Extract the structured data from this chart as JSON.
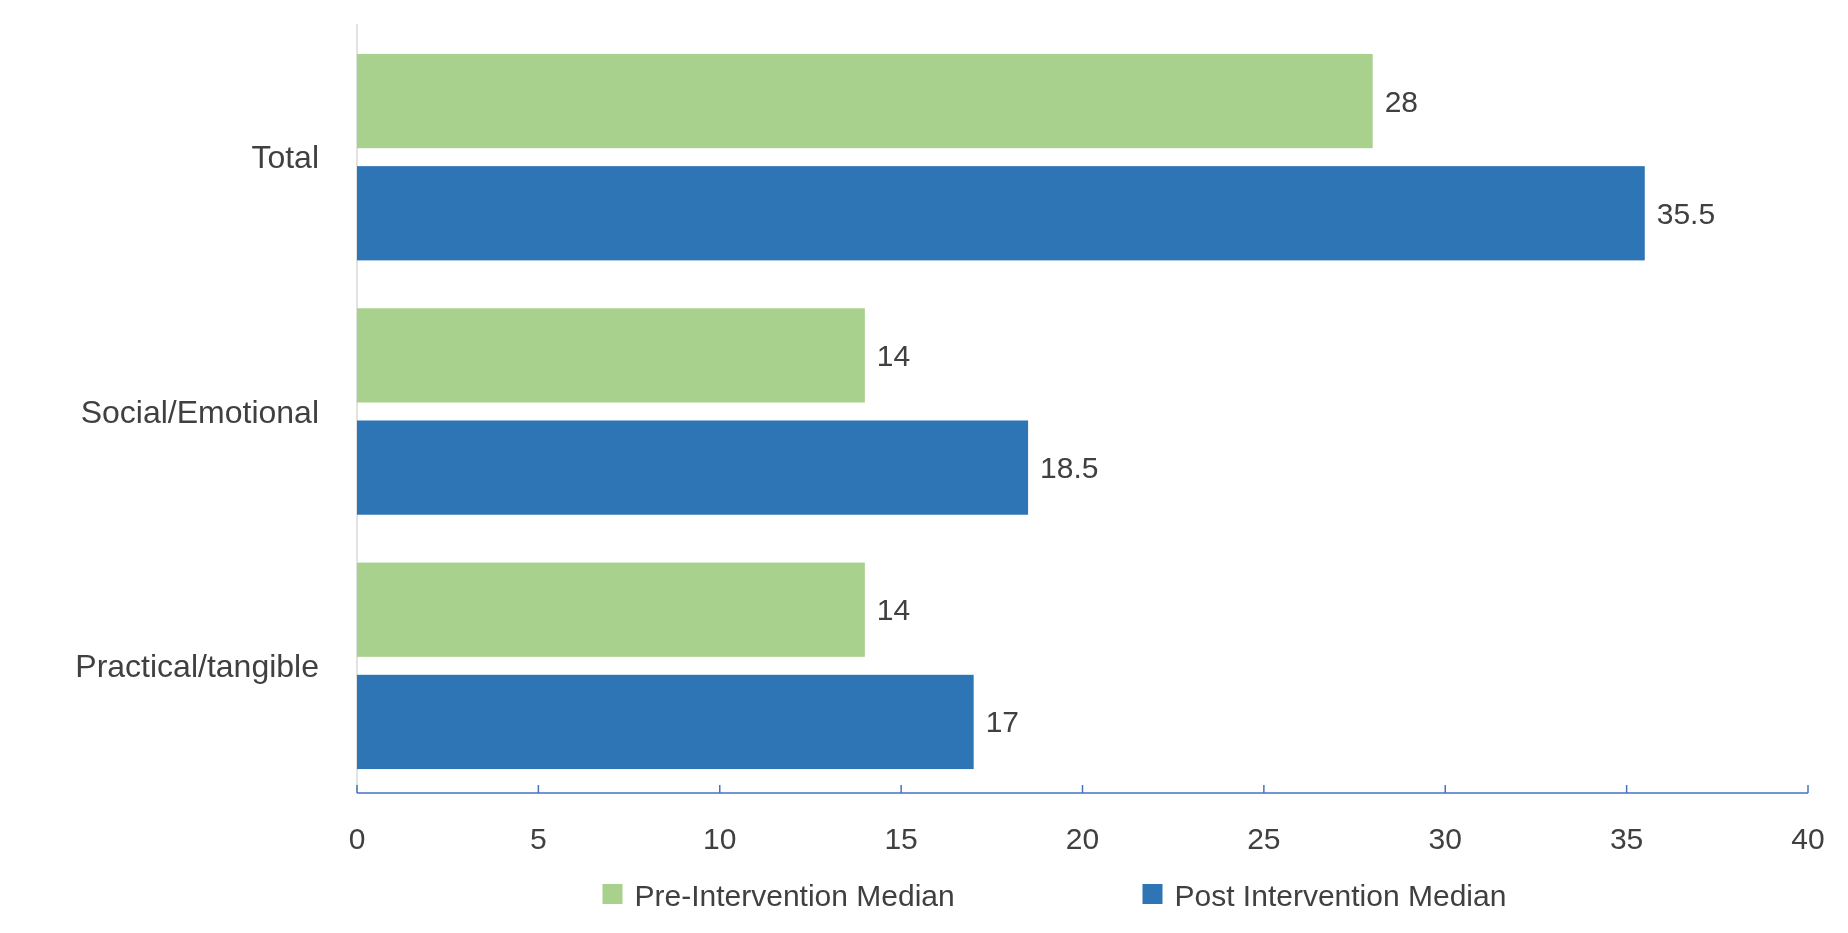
{
  "chart_data": {
    "type": "bar",
    "orientation": "horizontal",
    "categories": [
      "Total",
      "Social/Emotional",
      "Practical/tangible"
    ],
    "series": [
      {
        "name": "Pre-Intervention Median",
        "color": "#a9d18e",
        "values": [
          28,
          14,
          14
        ]
      },
      {
        "name": "Post Intervention Median",
        "color": "#2e75b6",
        "values": [
          35.5,
          18.5,
          17
        ]
      }
    ],
    "xlim": [
      0,
      40
    ],
    "xticks": [
      0,
      5,
      10,
      15,
      20,
      25,
      30,
      35,
      40
    ],
    "data_labels": true,
    "legend": "bottom",
    "grid": false
  }
}
